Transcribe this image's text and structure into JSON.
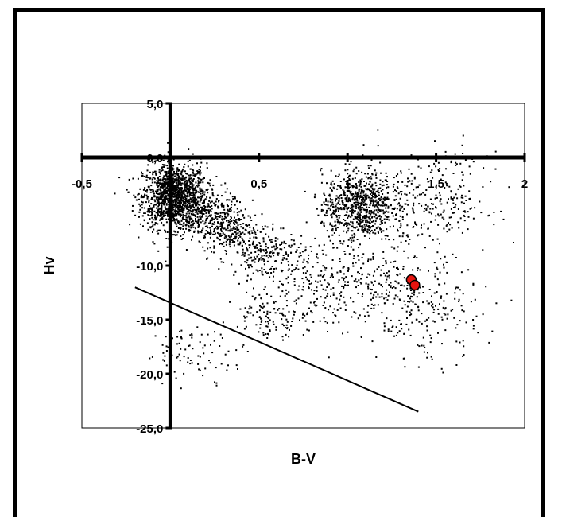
{
  "chart_data": {
    "type": "scatter",
    "title": "",
    "xlabel": "B-V",
    "ylabel": "Hv",
    "xlim": [
      -0.5,
      2
    ],
    "ylim": [
      -25,
      5
    ],
    "x_ticks": [
      -0.5,
      0,
      0.5,
      1,
      1.5,
      2
    ],
    "x_tick_labels": [
      "-0,5",
      "",
      "0,5",
      "1",
      "1,5",
      "2"
    ],
    "y_ticks": [
      5,
      0,
      -5,
      -10,
      -15,
      -20,
      -25
    ],
    "y_tick_labels": [
      "5,0",
      "0,0",
      "-5,0",
      "-10,0",
      "-15,0",
      "-20,0",
      "-25,0"
    ],
    "grid": false,
    "legend": "none",
    "colors": {
      "points": "#000000",
      "highlight": "#e8140f",
      "line": "#000000"
    },
    "series": [
      {
        "kind": "density",
        "clusters": [
          {
            "x": 0.02,
            "y": -3.5,
            "sx": 0.09,
            "sy": 1.5,
            "n": 1300
          },
          {
            "x": 0.15,
            "y": -5.0,
            "sx": 0.1,
            "sy": 1.2,
            "n": 250
          },
          {
            "x": 0.32,
            "y": -6.5,
            "sx": 0.07,
            "sy": 1.3,
            "n": 260
          },
          {
            "x": 0.52,
            "y": -8.5,
            "sx": 0.09,
            "sy": 1.3,
            "n": 200
          },
          {
            "x": 0.75,
            "y": -10.5,
            "sx": 0.12,
            "sy": 1.5,
            "n": 130
          },
          {
            "x": 1.05,
            "y": -4.5,
            "sx": 0.1,
            "sy": 1.6,
            "n": 700
          },
          {
            "x": 1.22,
            "y": -4.0,
            "sx": 0.13,
            "sy": 2.0,
            "n": 180
          },
          {
            "x": 1.55,
            "y": -4.0,
            "sx": 0.12,
            "sy": 2.2,
            "n": 200
          },
          {
            "x": 1.15,
            "y": -11.5,
            "sx": 0.18,
            "sy": 1.8,
            "n": 220
          },
          {
            "x": 1.45,
            "y": -14.5,
            "sx": 0.15,
            "sy": 2.2,
            "n": 180
          },
          {
            "x": 0.55,
            "y": -14.5,
            "sx": 0.1,
            "sy": 1.0,
            "n": 90
          },
          {
            "x": 0.15,
            "y": -18.0,
            "sx": 0.15,
            "sy": 1.2,
            "n": 90
          },
          {
            "x": 0.85,
            "y": -14.0,
            "sx": 0.2,
            "sy": 1.5,
            "n": 80
          }
        ]
      },
      {
        "kind": "highlight",
        "x": [
          1.36,
          1.38
        ],
        "y": [
          -11.3,
          -11.8
        ]
      },
      {
        "kind": "line",
        "x": [
          -0.2,
          1.4
        ],
        "y": [
          -12.0,
          -23.5
        ]
      }
    ]
  }
}
